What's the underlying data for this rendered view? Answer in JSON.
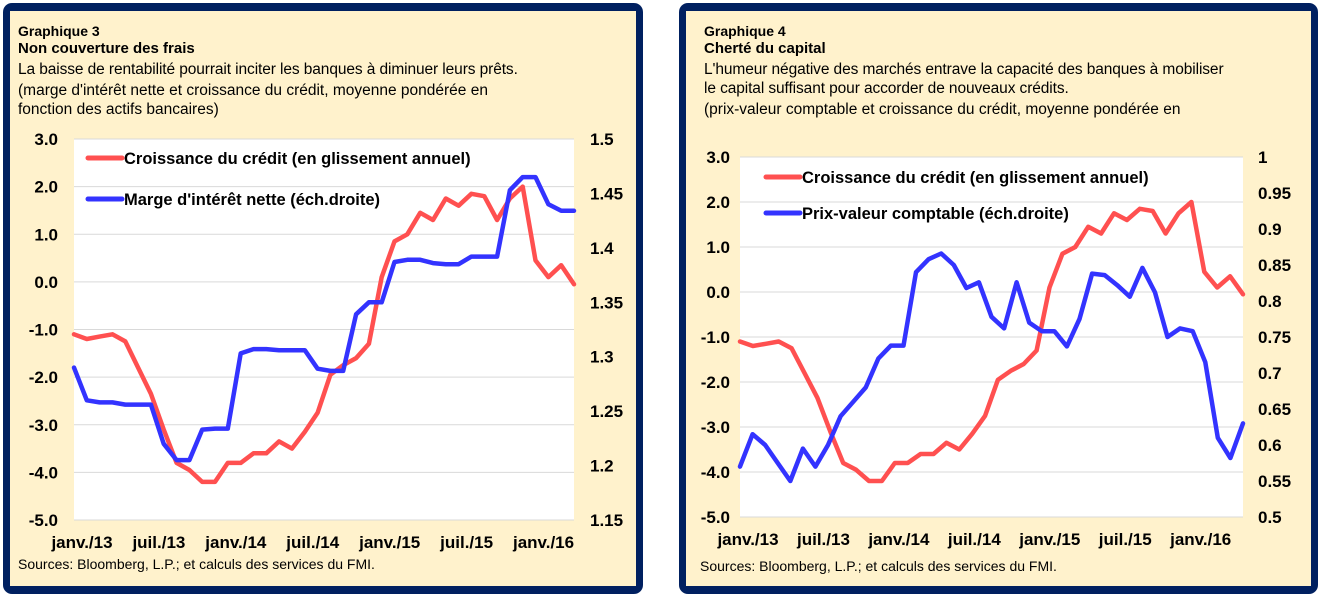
{
  "colors": {
    "frame": "#002060",
    "panel_bg": "#fff2cc",
    "plot_bg": "#ffffff",
    "grid": "#d9d9d9",
    "credit_line": "#ff5050",
    "blue_line": "#3333ff"
  },
  "panels": [
    {
      "number": "Graphique  3",
      "title": "Non couverture  des frais",
      "subtitle": "La baisse de rentabilité  pourrait inciter les banques  à diminuer  leurs  prêts.",
      "units": [
        "(marge d'intérêt  nette  et croissance du crédit, moyenne pondérée  en",
        "fonction  des actifs bancaires)"
      ],
      "sources": "Sources: Bloomberg,  L.P.; et calculs des services du FMI."
    },
    {
      "number": "Graphique  4",
      "title": "Cherté du capital",
      "subtitle_lines": [
        "L'humeur  négative  des marchés entrave  la capacité des banques à mobiliser",
        "le capital suffisant  pour accorder de nouveaux  crédits."
      ],
      "units": [
        "(prix-valeur  comptable  et croissance du crédit, moyenne  pondérée  en"
      ],
      "sources": "Sources: Bloomberg,  L.P.; et calculs des services du FMI."
    }
  ],
  "chart_data": [
    {
      "type": "line",
      "title": "Non couverture des frais",
      "xlabel": "",
      "x_tick_labels": [
        "janv./13",
        "juil./13",
        "janv./14",
        "juil./14",
        "janv./15",
        "juil./15",
        "janv./16"
      ],
      "x_tick_months": [
        0,
        6,
        12,
        18,
        24,
        30,
        36
      ],
      "left_axis": {
        "ylim": [
          -5.0,
          3.0
        ],
        "ticks": [
          "3.0",
          "2.0",
          "1.0",
          "0.0",
          "-1.0",
          "-2.0",
          "-3.0",
          "-4.0",
          "-5.0"
        ],
        "tick_values": [
          3,
          2,
          1,
          0,
          -1,
          -2,
          -3,
          -4,
          -5
        ]
      },
      "right_axis": {
        "ylim": [
          1.15,
          1.5
        ],
        "ticks": [
          "1.5",
          "1.45",
          "1.4",
          "1.35",
          "1.3",
          "1.25",
          "1.2",
          "1.15"
        ],
        "tick_values": [
          1.5,
          1.45,
          1.4,
          1.35,
          1.3,
          1.25,
          1.2,
          1.15
        ]
      },
      "grid": true,
      "legend_position": "top-left",
      "series": [
        {
          "name": "Croissance du crédit (en glissement annuel)",
          "axis": "left",
          "color": "#ff5050",
          "values": [
            -1.1,
            -1.2,
            -1.15,
            -1.1,
            -1.25,
            -1.8,
            -2.35,
            -3.1,
            -3.8,
            -3.95,
            -4.2,
            -4.2,
            -3.8,
            -3.8,
            -3.6,
            -3.6,
            -3.35,
            -3.5,
            -3.15,
            -2.75,
            -1.95,
            -1.75,
            -1.6,
            -1.3,
            0.1,
            0.85,
            1.0,
            1.45,
            1.3,
            1.75,
            1.6,
            1.85,
            1.8,
            1.3,
            1.75,
            2.0,
            0.45,
            0.1,
            0.35,
            -0.05
          ]
        },
        {
          "name": "Marge d'intérêt nette (éch.droite)",
          "axis": "right",
          "color": "#3333ff",
          "values": [
            1.29,
            1.26,
            1.258,
            1.258,
            1.256,
            1.256,
            1.256,
            1.22,
            1.205,
            1.205,
            1.233,
            1.234,
            1.234,
            1.303,
            1.307,
            1.307,
            1.306,
            1.306,
            1.306,
            1.289,
            1.287,
            1.287,
            1.339,
            1.35,
            1.35,
            1.387,
            1.389,
            1.389,
            1.386,
            1.385,
            1.385,
            1.392,
            1.392,
            1.392,
            1.453,
            1.465,
            1.465,
            1.44,
            1.434,
            1.434
          ]
        }
      ]
    },
    {
      "type": "line",
      "title": "Cherté du capital",
      "xlabel": "",
      "x_tick_labels": [
        "janv./13",
        "juil./13",
        "janv./14",
        "juil./14",
        "janv./15",
        "juil./15",
        "janv./16"
      ],
      "x_tick_months": [
        0,
        6,
        12,
        18,
        24,
        30,
        36
      ],
      "left_axis": {
        "ylim": [
          -5.0,
          3.0
        ],
        "ticks": [
          "3.0",
          "2.0",
          "1.0",
          "0.0",
          "-1.0",
          "-2.0",
          "-3.0",
          "-4.0",
          "-5.0"
        ],
        "tick_values": [
          3,
          2,
          1,
          0,
          -1,
          -2,
          -3,
          -4,
          -5
        ]
      },
      "right_axis": {
        "ylim": [
          0.5,
          1.0
        ],
        "ticks": [
          "1",
          "0.95",
          "0.9",
          "0.85",
          "0.8",
          "0.75",
          "0.7",
          "0.65",
          "0.6",
          "0.55",
          "0.5"
        ],
        "tick_values": [
          1,
          0.95,
          0.9,
          0.85,
          0.8,
          0.75,
          0.7,
          0.65,
          0.6,
          0.55,
          0.5
        ]
      },
      "grid": true,
      "legend_position": "top-left",
      "series": [
        {
          "name": "Croissance du crédit (en glissement annuel)",
          "axis": "left",
          "color": "#ff5050",
          "values": [
            -1.1,
            -1.2,
            -1.15,
            -1.1,
            -1.25,
            -1.8,
            -2.35,
            -3.1,
            -3.8,
            -3.95,
            -4.2,
            -4.2,
            -3.8,
            -3.8,
            -3.6,
            -3.6,
            -3.35,
            -3.5,
            -3.15,
            -2.75,
            -1.95,
            -1.75,
            -1.6,
            -1.3,
            0.1,
            0.85,
            1.0,
            1.45,
            1.3,
            1.75,
            1.6,
            1.85,
            1.8,
            1.3,
            1.75,
            2.0,
            0.45,
            0.1,
            0.35,
            -0.05
          ]
        },
        {
          "name": "Prix-valeur comptable (éch.droite)",
          "axis": "right",
          "color": "#3333ff",
          "values": [
            0.57,
            0.615,
            0.6,
            0.575,
            0.55,
            0.595,
            0.57,
            0.6,
            0.64,
            0.66,
            0.68,
            0.72,
            0.738,
            0.738,
            0.84,
            0.858,
            0.866,
            0.85,
            0.818,
            0.826,
            0.778,
            0.762,
            0.826,
            0.77,
            0.758,
            0.758,
            0.737,
            0.775,
            0.838,
            0.836,
            0.822,
            0.806,
            0.846,
            0.812,
            0.75,
            0.762,
            0.758,
            0.715,
            0.61,
            0.582,
            0.63
          ]
        }
      ]
    }
  ]
}
